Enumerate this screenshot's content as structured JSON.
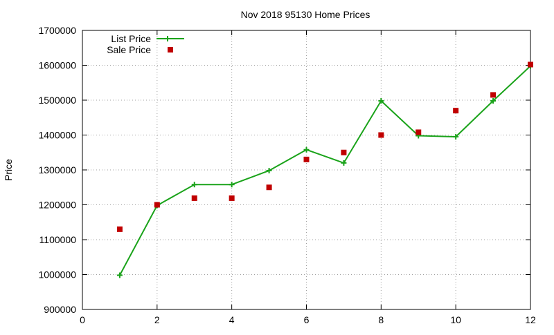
{
  "chart_data": {
    "type": "line",
    "title": "Nov 2018 95130 Home Prices",
    "xlabel": "",
    "ylabel": "Price",
    "xlim": [
      0,
      12
    ],
    "ylim": [
      900000,
      1700000
    ],
    "x_ticks": [
      0,
      2,
      4,
      6,
      8,
      10,
      12
    ],
    "y_ticks": [
      900000,
      1000000,
      1100000,
      1200000,
      1300000,
      1400000,
      1500000,
      1600000,
      1700000
    ],
    "grid": true,
    "legend_position": "top-left",
    "series": [
      {
        "name": "List Price",
        "style": "line-with-plus-markers",
        "color": "#1aa31a",
        "x": [
          1,
          2,
          3,
          4,
          5,
          6,
          7,
          8,
          9,
          10,
          11,
          12
        ],
        "values": [
          998000,
          1198000,
          1258000,
          1258000,
          1298000,
          1358000,
          1320000,
          1498000,
          1398000,
          1395000,
          1498000,
          1598000
        ]
      },
      {
        "name": "Sale Price",
        "style": "square-markers",
        "color": "#c00000",
        "x": [
          1,
          2,
          3,
          4,
          5,
          6,
          7,
          8,
          9,
          10,
          11,
          12
        ],
        "values": [
          1130000,
          1200000,
          1219000,
          1219000,
          1250000,
          1330000,
          1350000,
          1400000,
          1408000,
          1470000,
          1515000,
          1602000
        ]
      }
    ]
  }
}
